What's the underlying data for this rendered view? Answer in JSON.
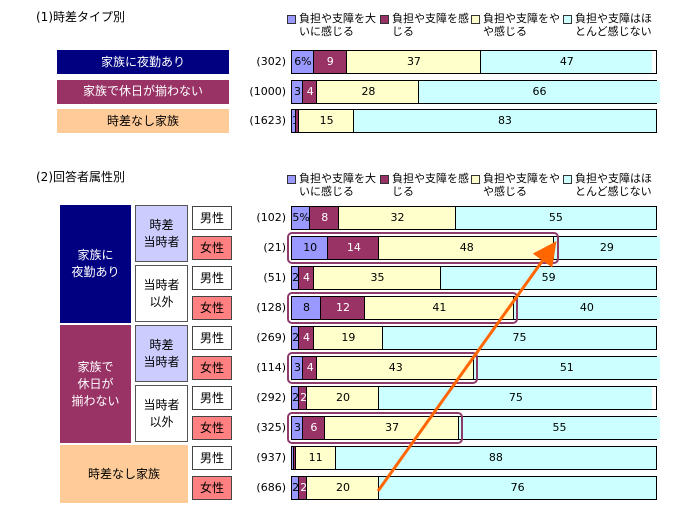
{
  "colors": {
    "s1": "#9999ff",
    "s2": "#993366",
    "s3": "#ffffcc",
    "s4": "#ccffff",
    "navy": "#000080",
    "plum": "#993366",
    "peach": "#ffcc99",
    "lavender": "#ccccff",
    "pink": "#ff8080",
    "arrow": "#ff6600"
  },
  "chart_data": [
    {
      "type": "bar",
      "stacked": true,
      "orientation": "horizontal",
      "title": "(1)時差タイプ別",
      "xlim": [
        0,
        100
      ],
      "legend": [
        "負担や支障を大いに感じる",
        "負担や支障を感じる",
        "負担や支障をやや感じる",
        "負担や支障はほとんど感じない"
      ],
      "categories": [
        {
          "label": "家族に夜勤あり",
          "n": "(302)",
          "values": [
            6,
            9,
            37,
            47
          ],
          "labels": [
            "6%",
            "9",
            "37",
            "47"
          ]
        },
        {
          "label": "家族で休日が揃わない",
          "n": "(1000)",
          "values": [
            3,
            4,
            28,
            66
          ],
          "labels": [
            "3",
            "4",
            "28",
            "66"
          ]
        },
        {
          "label": "時差なし家族",
          "n": "(1623)",
          "values": [
            1,
            1,
            15,
            83
          ],
          "labels": [
            "1",
            "1",
            "15",
            "83"
          ]
        }
      ]
    },
    {
      "type": "bar",
      "stacked": true,
      "orientation": "horizontal",
      "title": "(2)回答者属性別",
      "xlim": [
        0,
        100
      ],
      "legend": [
        "負担や支障を大いに感じる",
        "負担や支障を感じる",
        "負担や支障をやや感じる",
        "負担や支障はほとんど感じない"
      ],
      "groups": [
        {
          "label": "家族に\n夜勤あり",
          "subgroups": [
            {
              "label": "時差\n当時者"
            },
            {
              "label": "当時者\n以外"
            }
          ]
        },
        {
          "label": "家族で\n休日が\n揃わない",
          "subgroups": [
            {
              "label": "時差\n当時者"
            },
            {
              "label": "当時者\n以外"
            }
          ]
        },
        {
          "label": "時差なし家族"
        }
      ],
      "categories": [
        {
          "gender": "男性",
          "n": "(102)",
          "values": [
            5,
            8,
            32,
            55
          ],
          "labels": [
            "5%",
            "8",
            "32",
            "55"
          ]
        },
        {
          "gender": "女性",
          "n": "(21)",
          "values": [
            10,
            14,
            48,
            29
          ],
          "labels": [
            "10",
            "14",
            "48",
            "29"
          ],
          "highlight": true
        },
        {
          "gender": "男性",
          "n": "(51)",
          "values": [
            2,
            4,
            35,
            59
          ],
          "labels": [
            "2",
            "4",
            "35",
            "59"
          ]
        },
        {
          "gender": "女性",
          "n": "(128)",
          "values": [
            8,
            12,
            41,
            40
          ],
          "labels": [
            "8",
            "12",
            "41",
            "40"
          ],
          "highlight": true
        },
        {
          "gender": "男性",
          "n": "(269)",
          "values": [
            2,
            4,
            19,
            75
          ],
          "labels": [
            "2",
            "4",
            "19",
            "75"
          ]
        },
        {
          "gender": "女性",
          "n": "(114)",
          "values": [
            3,
            4,
            43,
            51
          ],
          "labels": [
            "3",
            "4",
            "43",
            "51"
          ],
          "highlight": true
        },
        {
          "gender": "男性",
          "n": "(292)",
          "values": [
            2,
            2,
            20,
            75
          ],
          "labels": [
            "2",
            "2",
            "20",
            "75"
          ]
        },
        {
          "gender": "女性",
          "n": "(325)",
          "values": [
            3,
            6,
            37,
            55
          ],
          "labels": [
            "3",
            "6",
            "37",
            "55"
          ],
          "highlight": true
        },
        {
          "gender": "男性",
          "n": "(937)",
          "values": [
            0.5,
            0.5,
            11,
            88
          ],
          "labels": [
            "1",
            "",
            "11",
            "88"
          ]
        },
        {
          "gender": "女性",
          "n": "(686)",
          "values": [
            2,
            2,
            20,
            76
          ],
          "labels": [
            "2",
            "2",
            "20",
            "76"
          ]
        }
      ]
    }
  ]
}
